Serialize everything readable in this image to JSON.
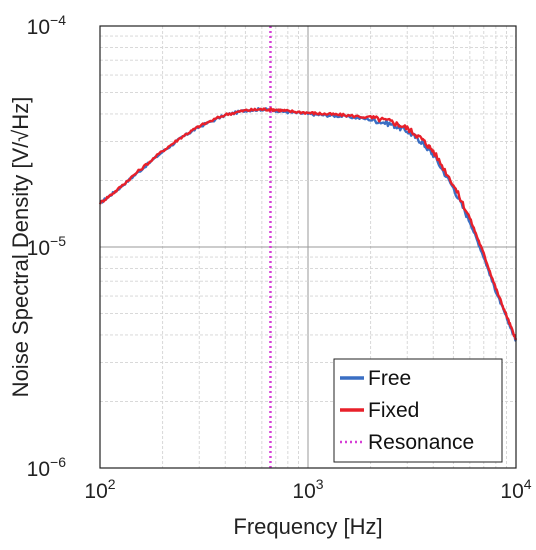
{
  "chart_data": {
    "type": "line",
    "xlabel": "Frequency [Hz]",
    "ylabel": "Noise Spectral Density [V/√Hz]",
    "xscale": "log",
    "yscale": "log",
    "xlim": [
      100,
      10000
    ],
    "ylim": [
      1e-06,
      0.0001
    ],
    "grid": true,
    "legend_position": "bottom-right",
    "x_ticks": [
      {
        "base": "10",
        "exp": "2"
      },
      {
        "base": "10",
        "exp": "3"
      },
      {
        "base": "10",
        "exp": "4"
      }
    ],
    "y_ticks": [
      {
        "base": "10",
        "exp": "−6"
      },
      {
        "base": "10",
        "exp": "−5"
      },
      {
        "base": "10",
        "exp": "−4"
      }
    ],
    "x": [
      100,
      120,
      150,
      200,
      250,
      300,
      400,
      500,
      600,
      700,
      800,
      1000,
      1200,
      1500,
      2000,
      2500,
      3000,
      3500,
      4000,
      5000,
      6000,
      7000,
      8000,
      9000,
      10000
    ],
    "series": [
      {
        "name": "Free",
        "color": "#3a6fc4",
        "y": [
          1.58e-05,
          1.8e-05,
          2.15e-05,
          2.7e-05,
          3.15e-05,
          3.5e-05,
          3.95e-05,
          4.15e-05,
          4.2e-05,
          4.15e-05,
          4.08e-05,
          4e-05,
          3.95e-05,
          3.9e-05,
          3.78e-05,
          3.6e-05,
          3.35e-05,
          3e-05,
          2.62e-05,
          1.85e-05,
          1.3e-05,
          9e-06,
          6.3e-06,
          4.8e-06,
          3.75e-06
        ]
      },
      {
        "name": "Fixed",
        "color": "#e8202a",
        "y": [
          1.58e-05,
          1.8e-05,
          2.17e-05,
          2.72e-05,
          3.17e-05,
          3.52e-05,
          3.97e-05,
          4.15e-05,
          4.2e-05,
          4.18e-05,
          4.12e-05,
          4.05e-05,
          4e-05,
          3.95e-05,
          3.85e-05,
          3.7e-05,
          3.45e-05,
          3.1e-05,
          2.72e-05,
          1.92e-05,
          1.35e-05,
          9.3e-06,
          6.5e-06,
          4.9e-06,
          3.8e-06
        ]
      }
    ],
    "resonance": {
      "name": "Resonance",
      "x": 660,
      "color": "#d63fd6",
      "style": "dotted"
    }
  }
}
